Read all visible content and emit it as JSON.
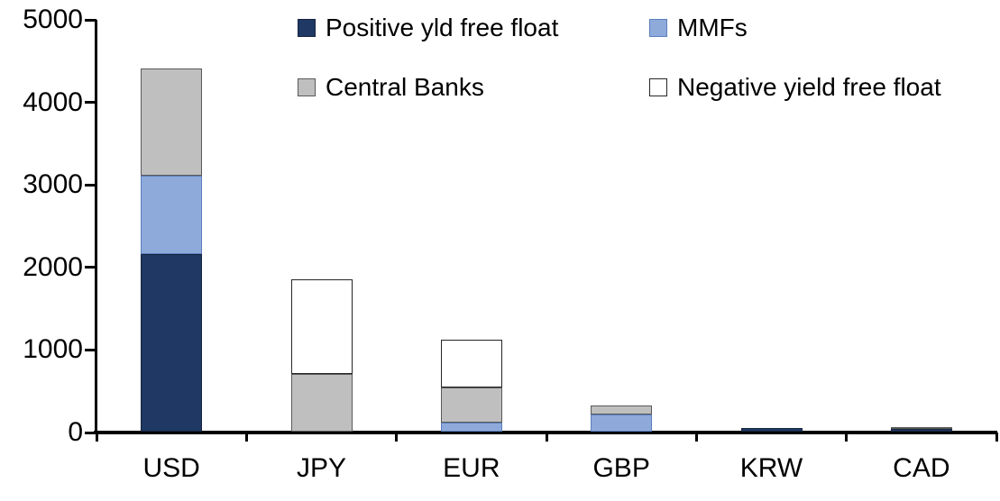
{
  "chart_data": {
    "type": "bar",
    "subtype": "stacked-vertical",
    "title": "",
    "xlabel": "",
    "ylabel": "",
    "categories": [
      "USD",
      "JPY",
      "EUR",
      "GBP",
      "KRW",
      "CAD"
    ],
    "series": [
      {
        "name": "Positive yld free float",
        "color": "#1F3864",
        "border_color": "#17243E",
        "values": [
          2150,
          0,
          0,
          0,
          40,
          35
        ]
      },
      {
        "name": "MMFs",
        "color": "#8EAADB",
        "border_color": "#5B7FBD",
        "values": [
          950,
          0,
          110,
          210,
          0,
          0
        ]
      },
      {
        "name": "Central Banks",
        "color": "#BFBFBF",
        "border_color": "#595959",
        "values": [
          1300,
          700,
          430,
          110,
          0,
          25
        ]
      },
      {
        "name": "Negative yield free float",
        "color": "#FFFFFF",
        "border_color": "#262626",
        "values": [
          0,
          1140,
          570,
          0,
          0,
          0
        ]
      }
    ],
    "totals": [
      4400,
      1840,
      1110,
      320,
      40,
      60
    ],
    "ylim": [
      0,
      5000
    ],
    "ytick_interval": 1000,
    "ytick_labels": [
      "0",
      "1000",
      "2000",
      "3000",
      "4000",
      "5000"
    ],
    "grid": false,
    "legend_position": "top-inside",
    "legend_columns": 2,
    "axis_color": "#000000",
    "background_color": "#FFFFFF",
    "text_color": "#000000"
  }
}
